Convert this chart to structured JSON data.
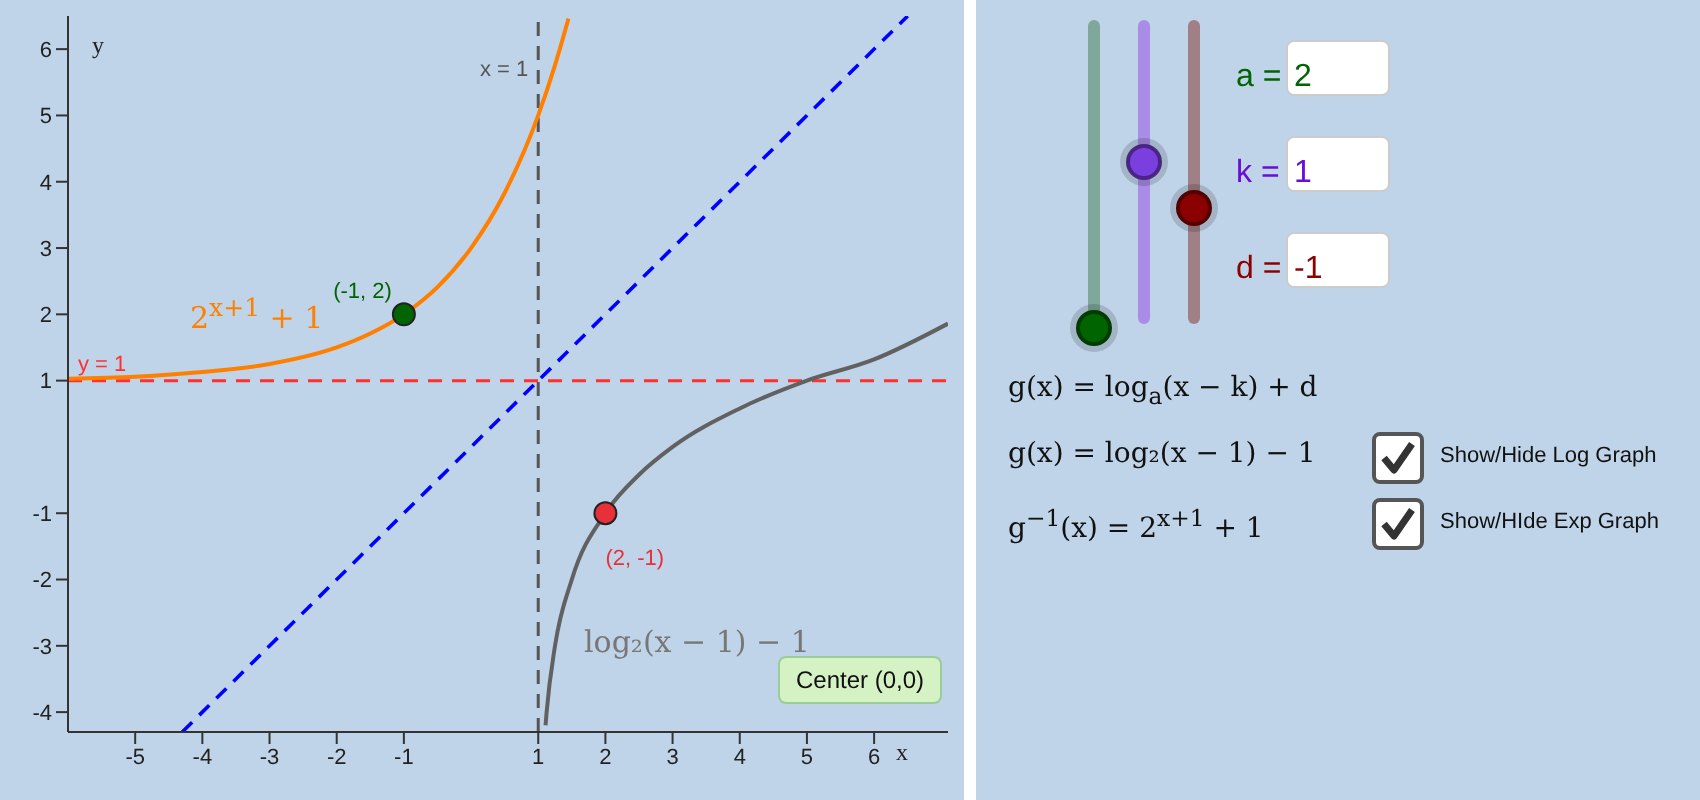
{
  "chart_data": {
    "type": "line",
    "xlabel": "x",
    "ylabel": "y",
    "xlim": [
      -6,
      7.1
    ],
    "ylim": [
      -4.3,
      6.5
    ],
    "xticks": [
      -5,
      -4,
      -3,
      -2,
      -1,
      1,
      2,
      3,
      4,
      5,
      6
    ],
    "yticks": [
      -4,
      -3,
      -2,
      -1,
      1,
      2,
      3,
      4,
      5,
      6
    ],
    "series": [
      {
        "color": "#ff7f00",
        "marker": "none",
        "line_style": "solid",
        "x": [
          -6,
          -5,
          -4,
          -3,
          -2,
          -1.5,
          -1,
          -0.5,
          0,
          0.5,
          1,
          1.25,
          1.45
        ],
        "values": [
          1.03,
          1.06,
          1.13,
          1.25,
          1.5,
          1.71,
          2,
          2.41,
          3,
          3.83,
          5,
          5.76,
          6.46
        ]
      },
      {
        "color": "#616161",
        "marker": "none",
        "line_style": "solid",
        "x": [
          1.109,
          1.125,
          1.25,
          1.5,
          2,
          2.5,
          3,
          4,
          5,
          6,
          7.1
        ],
        "values": [
          -4.2,
          -4,
          -3,
          -2,
          -1,
          -0.42,
          0,
          0.58,
          1,
          1.32,
          1.86
        ]
      },
      {
        "color": "#0000ff",
        "marker": "none",
        "line_style": "dashed",
        "x": [
          -4.3,
          6.5
        ],
        "values": [
          -4.3,
          6.5
        ]
      },
      {
        "type": "scatter",
        "color": "#006400",
        "marker": "circle",
        "x": [
          -1
        ],
        "values": [
          2
        ]
      },
      {
        "type": "scatter",
        "color": "#e8303a",
        "marker": "circle",
        "x": [
          2
        ],
        "values": [
          -1
        ]
      }
    ],
    "ref_lines": [
      {
        "axis": "x",
        "value": 1,
        "label": "x = 1",
        "color": "#555555",
        "line_style": "dashed"
      },
      {
        "axis": "y",
        "value": 1,
        "label": "y = 1",
        "color": "#ff3030",
        "line_style": "dashed"
      }
    ],
    "annotations": [
      {
        "text": "(-1, 2)",
        "x": -1,
        "y": 2
      },
      {
        "text": "(2, -1)",
        "x": 2,
        "y": -1
      },
      "2$^{x+1}$ + 1",
      "log₂(x − 1) − 1",
      "a =",
      "2",
      "k =",
      "1",
      "d =",
      "-1",
      "g(x) = log$_{a}$(x − k) + d",
      "g(x) = log₂(x − 1) − 1",
      "g$^{−1}$(x) = 2$^{x+1}$ + 1",
      "Show/Hide Log Graph",
      "Show/HIde Exp Graph",
      "Center (0,0)"
    ]
  }
}
